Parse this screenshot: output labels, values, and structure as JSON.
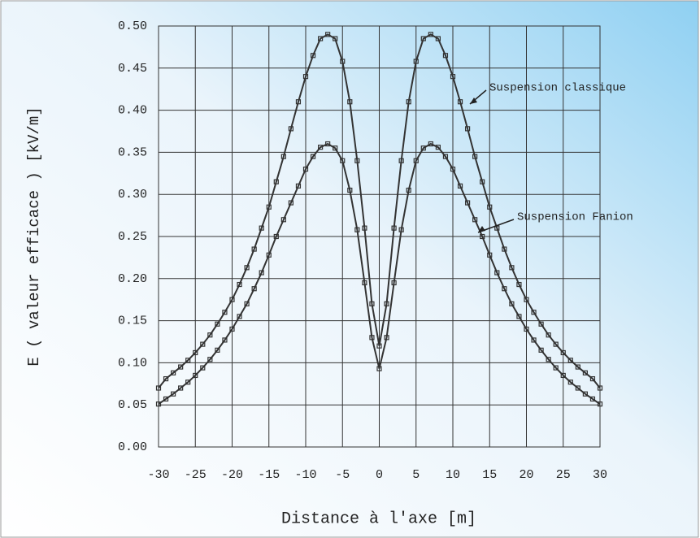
{
  "chart_data": {
    "type": "line",
    "xlabel": "Distance à l'axe [m]",
    "ylabel": "E ( valeur efficace ) [kV/m]",
    "x": [
      -30,
      -29,
      -28,
      -27,
      -26,
      -25,
      -24,
      -23,
      -22,
      -21,
      -20,
      -19,
      -18,
      -17,
      -16,
      -15,
      -14,
      -13,
      -12,
      -11,
      -10,
      -9,
      -8,
      -7,
      -6,
      -5,
      -4,
      -3,
      -2,
      -1,
      0,
      1,
      2,
      3,
      4,
      5,
      6,
      7,
      8,
      9,
      10,
      11,
      12,
      13,
      14,
      15,
      16,
      17,
      18,
      19,
      20,
      21,
      22,
      23,
      24,
      25,
      26,
      27,
      28,
      29,
      30
    ],
    "series": [
      {
        "name": "Suspension classique",
        "color": "#333333",
        "values": [
          0.07,
          0.081,
          0.088,
          0.095,
          0.103,
          0.112,
          0.122,
          0.133,
          0.146,
          0.16,
          0.175,
          0.193,
          0.213,
          0.235,
          0.26,
          0.285,
          0.315,
          0.345,
          0.378,
          0.41,
          0.44,
          0.465,
          0.485,
          0.49,
          0.485,
          0.458,
          0.41,
          0.34,
          0.26,
          0.17,
          0.12,
          0.17,
          0.26,
          0.34,
          0.41,
          0.458,
          0.485,
          0.49,
          0.485,
          0.465,
          0.44,
          0.41,
          0.378,
          0.345,
          0.315,
          0.285,
          0.26,
          0.235,
          0.213,
          0.193,
          0.175,
          0.16,
          0.146,
          0.133,
          0.122,
          0.112,
          0.103,
          0.095,
          0.088,
          0.081,
          0.07
        ]
      },
      {
        "name": "Suspension Fanion",
        "color": "#333333",
        "values": [
          0.051,
          0.057,
          0.063,
          0.07,
          0.077,
          0.085,
          0.094,
          0.104,
          0.115,
          0.127,
          0.14,
          0.155,
          0.17,
          0.188,
          0.207,
          0.228,
          0.25,
          0.27,
          0.29,
          0.31,
          0.33,
          0.345,
          0.356,
          0.36,
          0.355,
          0.34,
          0.305,
          0.258,
          0.195,
          0.13,
          0.093,
          0.13,
          0.195,
          0.258,
          0.305,
          0.34,
          0.355,
          0.36,
          0.356,
          0.345,
          0.33,
          0.31,
          0.29,
          0.27,
          0.25,
          0.228,
          0.207,
          0.188,
          0.17,
          0.155,
          0.14,
          0.127,
          0.115,
          0.104,
          0.094,
          0.085,
          0.077,
          0.07,
          0.063,
          0.057,
          0.051
        ]
      }
    ],
    "xlim": [
      -30,
      30
    ],
    "xticks": [
      -30,
      -25,
      -20,
      -15,
      -10,
      -5,
      0,
      5,
      10,
      15,
      20,
      25,
      30
    ],
    "ylim": [
      0,
      0.5
    ],
    "yticks": [
      {
        "value": 0,
        "label": "0.00"
      },
      {
        "value": 0.05,
        "label": "0.05"
      },
      {
        "value": 0.1,
        "label": "0.10"
      },
      {
        "value": 0.15,
        "label": "0.15"
      },
      {
        "value": 0.2,
        "label": "0.20"
      },
      {
        "value": 0.25,
        "label": "0.25"
      },
      {
        "value": 0.3,
        "label": "0.30"
      },
      {
        "value": 0.35,
        "label": "0.35"
      },
      {
        "value": 0.4,
        "label": "0.40"
      },
      {
        "value": 0.45,
        "label": "0.45"
      },
      {
        "value": 0.5,
        "label": "0.50"
      }
    ],
    "grid": true
  }
}
